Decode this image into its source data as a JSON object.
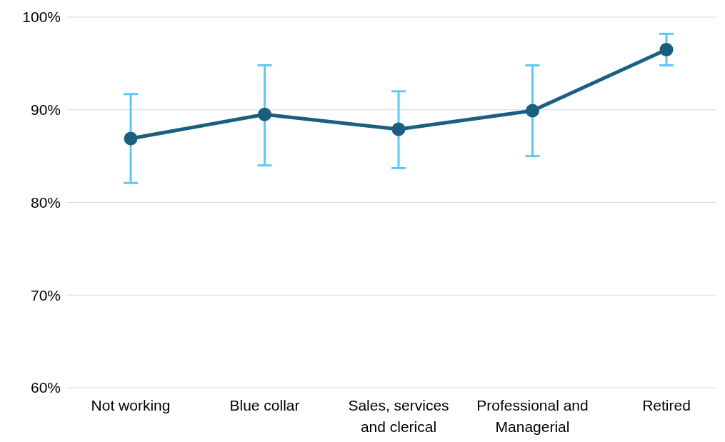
{
  "chart_data": {
    "type": "line",
    "categories": [
      "Not working",
      "Blue collar",
      "Sales, services and clerical",
      "Professional and Managerial",
      "Retired"
    ],
    "series": [
      {
        "color": "#1a5f80",
        "values": [
          86.9,
          89.5,
          87.9,
          89.9,
          96.5
        ],
        "errors": [
          [
            82.1,
            91.7
          ],
          [
            84.0,
            94.8
          ],
          [
            83.7,
            92.0
          ],
          [
            85.0,
            94.8
          ],
          [
            94.8,
            98.2
          ]
        ]
      }
    ],
    "ylim": [
      60,
      100
    ],
    "yticks": [
      {
        "value": 60,
        "label": "60%"
      },
      {
        "value": 70,
        "label": "70%"
      },
      {
        "value": 80,
        "label": "80%"
      },
      {
        "value": 90,
        "label": "90%"
      },
      {
        "value": 100,
        "label": "100%"
      }
    ],
    "grid": "y",
    "marker": "circle",
    "line_style": "solid"
  }
}
